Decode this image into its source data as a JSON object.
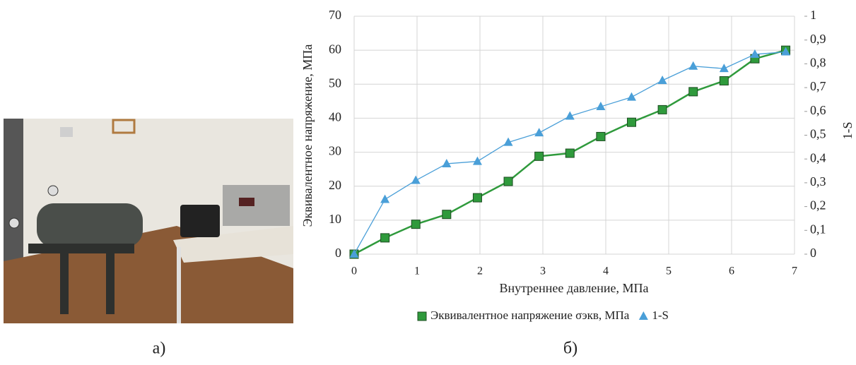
{
  "panel_labels": [
    "а)",
    "б)"
  ],
  "chart_data": {
    "type": "line",
    "x_label": "Внутреннее давление, МПа",
    "y_label": "Эквивалентное напряжение, МПа",
    "y2_label": "1-S",
    "x": [
      0,
      0.49,
      0.98,
      1.47,
      1.96,
      2.45,
      2.94,
      3.43,
      3.92,
      4.41,
      4.9,
      5.39,
      5.88,
      6.37,
      6.86
    ],
    "series": [
      {
        "name": "Эквивалентное напряжение σэкв, МПа",
        "color": "#2f9a3c",
        "marker": "square",
        "values": [
          0,
          4.8,
          8.8,
          11.7,
          16.6,
          21.4,
          28.8,
          29.7,
          34.6,
          38.8,
          42.5,
          47.8,
          51.0,
          57.5,
          60.0
        ]
      },
      {
        "name": "1-S",
        "color": "#4a9fd8",
        "marker": "triangle",
        "axis": "y2",
        "values": [
          0,
          0.23,
          0.31,
          0.38,
          0.39,
          0.47,
          0.51,
          0.58,
          0.62,
          0.66,
          0.73,
          0.79,
          0.78,
          0.84,
          0.85
        ]
      }
    ],
    "xlim": [
      0,
      7
    ],
    "xticks": [
      0,
      1,
      2,
      3,
      4,
      5,
      6,
      7
    ],
    "ylim": [
      0,
      70
    ],
    "yticks": [
      0,
      10,
      20,
      30,
      40,
      50,
      60,
      70
    ],
    "y2lim": [
      0,
      1
    ],
    "y2ticks": [
      0,
      {
        "value": 0.1,
        "label": "0,1"
      },
      {
        "value": 0.2,
        "label": "0,2"
      },
      {
        "value": 0.3,
        "label": "0,3"
      },
      {
        "value": 0.4,
        "label": "0,4"
      },
      {
        "value": 0.5,
        "label": "0,5"
      },
      {
        "value": 0.6,
        "label": "0,6"
      },
      {
        "value": 0.7,
        "label": "0,7"
      },
      {
        "value": 0.8,
        "label": "0,8"
      },
      {
        "value": 0.9,
        "label": "0,9"
      },
      1
    ],
    "grid": true,
    "legend": "bottom"
  }
}
